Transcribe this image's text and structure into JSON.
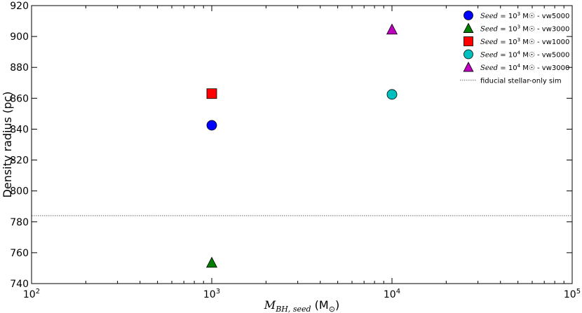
{
  "chart_data": {
    "type": "scatter",
    "xlabel": "M_{BH, seed} (M☉)",
    "ylabel": "Density radius (pc)",
    "xscale": "log",
    "xlim": [
      100,
      100000
    ],
    "ylim": [
      740,
      920
    ],
    "x_ticks": [
      {
        "value": 100,
        "base": "10",
        "exp": "2"
      },
      {
        "value": 1000,
        "base": "10",
        "exp": "3"
      },
      {
        "value": 10000,
        "base": "10",
        "exp": "4"
      },
      {
        "value": 100000,
        "base": "10",
        "exp": "5"
      }
    ],
    "y_ticks": [
      740,
      760,
      780,
      800,
      820,
      840,
      860,
      880,
      900,
      920
    ],
    "legend_position": "top-right",
    "series": [
      {
        "name": "Seed = 10^3 M☉ - vw5000",
        "legend_seed": "10",
        "legend_exp": "3",
        "legend_suffix": " M☉ - vw5000",
        "marker": "circle",
        "color": "#0000ff",
        "points": [
          {
            "x": 1000,
            "y": 842.5
          }
        ]
      },
      {
        "name": "Seed = 10^3 M☉ - vw3000",
        "legend_seed": "10",
        "legend_exp": "3",
        "legend_suffix": " M☉ - vw3000",
        "marker": "triangle",
        "color": "#007f00",
        "points": [
          {
            "x": 1000,
            "y": 753.5
          }
        ]
      },
      {
        "name": "Seed = 10^3 M☉ - vw1000",
        "legend_seed": "10",
        "legend_exp": "3",
        "legend_suffix": " M☉ - vw1000",
        "marker": "square",
        "color": "#ff0000",
        "points": [
          {
            "x": 1000,
            "y": 863
          }
        ]
      },
      {
        "name": "Seed = 10^4 M☉ - vw5000",
        "legend_seed": "10",
        "legend_exp": "4",
        "legend_suffix": " M☉ - vw5000",
        "marker": "circle",
        "color": "#00bfbf",
        "points": [
          {
            "x": 10000,
            "y": 862.5
          }
        ]
      },
      {
        "name": "Seed = 10^4 M☉ - vw3000",
        "legend_seed": "10",
        "legend_exp": "4",
        "legend_suffix": " M☉ - vw3000",
        "marker": "triangle",
        "color": "#bf00bf",
        "points": [
          {
            "x": 10000,
            "y": 904.5
          }
        ]
      }
    ],
    "reference_line": {
      "name": "fiducial stellar-only sim",
      "y": 784,
      "style": "dotted",
      "color": "#999999"
    }
  }
}
